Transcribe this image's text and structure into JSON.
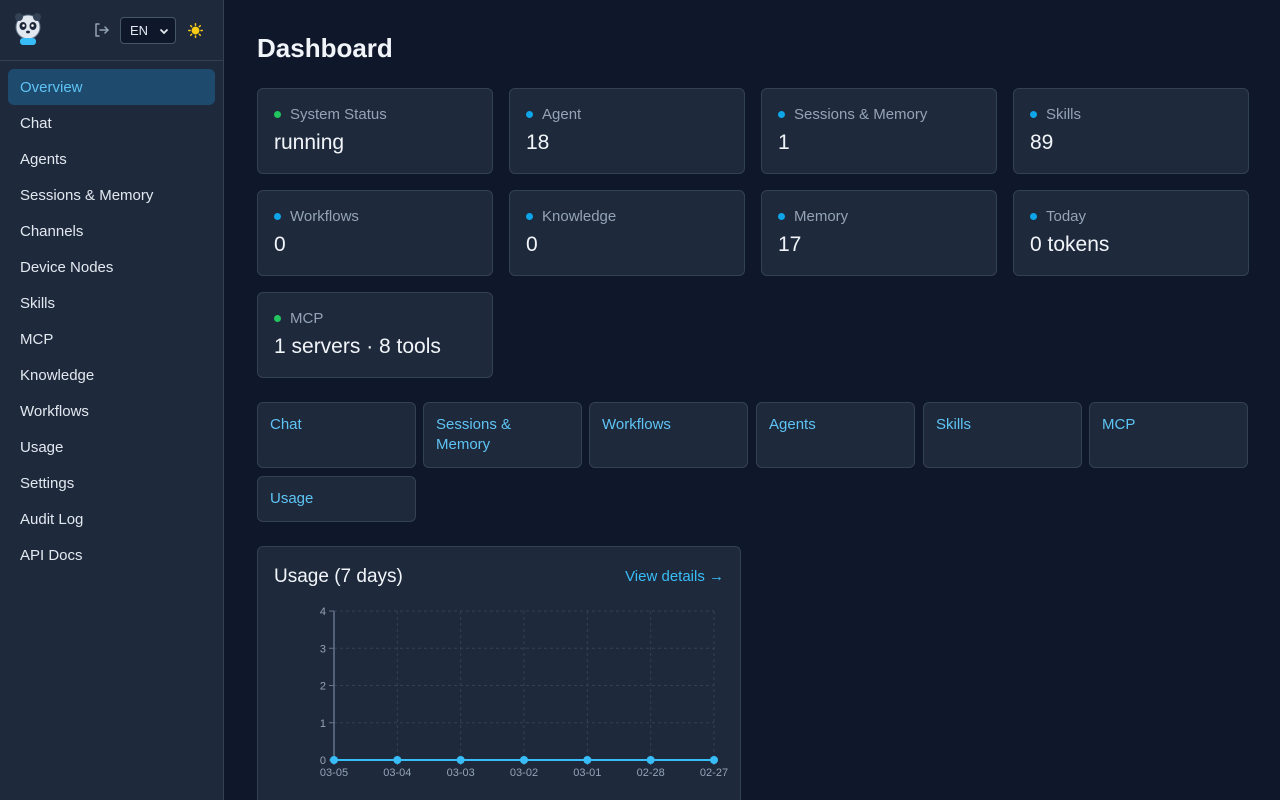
{
  "sidebar": {
    "language": "EN",
    "items": [
      {
        "label": "Overview",
        "active": true
      },
      {
        "label": "Chat"
      },
      {
        "label": "Agents"
      },
      {
        "label": "Sessions & Memory"
      },
      {
        "label": "Channels"
      },
      {
        "label": "Device Nodes"
      },
      {
        "label": "Skills"
      },
      {
        "label": "MCP"
      },
      {
        "label": "Knowledge"
      },
      {
        "label": "Workflows"
      },
      {
        "label": "Usage"
      },
      {
        "label": "Settings"
      },
      {
        "label": "Audit Log"
      },
      {
        "label": "API Docs"
      }
    ]
  },
  "page": {
    "title": "Dashboard"
  },
  "stats": [
    {
      "label": "System Status",
      "value": "running",
      "dot": "green"
    },
    {
      "label": "Agent",
      "value": "18",
      "dot": "blue"
    },
    {
      "label": "Sessions & Memory",
      "value": "1",
      "dot": "blue"
    },
    {
      "label": "Skills",
      "value": "89",
      "dot": "blue"
    },
    {
      "label": "Workflows",
      "value": "0",
      "dot": "blue"
    },
    {
      "label": "Knowledge",
      "value": "0",
      "dot": "blue"
    },
    {
      "label": "Memory",
      "value": "17",
      "dot": "blue"
    },
    {
      "label": "Today",
      "value": "0 tokens",
      "dot": "blue"
    },
    {
      "label": "MCP",
      "value": "1 servers · 8 tools",
      "dot": "green"
    }
  ],
  "quick_links": [
    "Chat",
    "Sessions & Memory",
    "Workflows",
    "Agents",
    "Skills",
    "MCP",
    "Usage"
  ],
  "usage": {
    "title": "Usage (7 days)",
    "view_details": "View details →"
  },
  "colors": {
    "accent": "#38bdf8",
    "active_bg": "#1e4a6e",
    "status_green": "#22c55e",
    "status_blue": "#0ea5e9"
  },
  "chart_data": {
    "type": "line",
    "title": "Usage (7 days)",
    "categories": [
      "03-05",
      "03-04",
      "03-03",
      "03-02",
      "03-01",
      "02-28",
      "02-27"
    ],
    "values": [
      0,
      0,
      0,
      0,
      0,
      0,
      0
    ],
    "ylim": [
      0,
      4
    ],
    "yticks": [
      "0",
      "1",
      "2",
      "3",
      "4"
    ],
    "grid": true
  }
}
